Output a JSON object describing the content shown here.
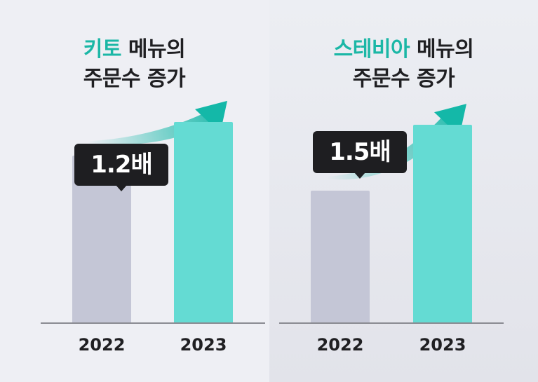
{
  "chart_data": [
    {
      "type": "bar",
      "title_accent": "키토",
      "title_rest": " 메뉴의",
      "title_line2": "주문수 증가",
      "categories": [
        "2022",
        "2023"
      ],
      "values": [
        1,
        1.2
      ],
      "annotation": "1.2배",
      "ylim": [
        0,
        1.3
      ],
      "colors": [
        "#c4c6d6",
        "#64dbd3"
      ]
    },
    {
      "type": "bar",
      "title_accent": "스테비아",
      "title_rest": " 메뉴의",
      "title_line2": "주문수 증가",
      "categories": [
        "2022",
        "2023"
      ],
      "values": [
        1,
        1.5
      ],
      "annotation": "1.5배",
      "ylim": [
        0,
        1.65
      ],
      "colors": [
        "#c4c6d6",
        "#64dbd3"
      ]
    }
  ],
  "colors": {
    "accent": "#1bb7a6",
    "arrow": "#14b8a8"
  }
}
